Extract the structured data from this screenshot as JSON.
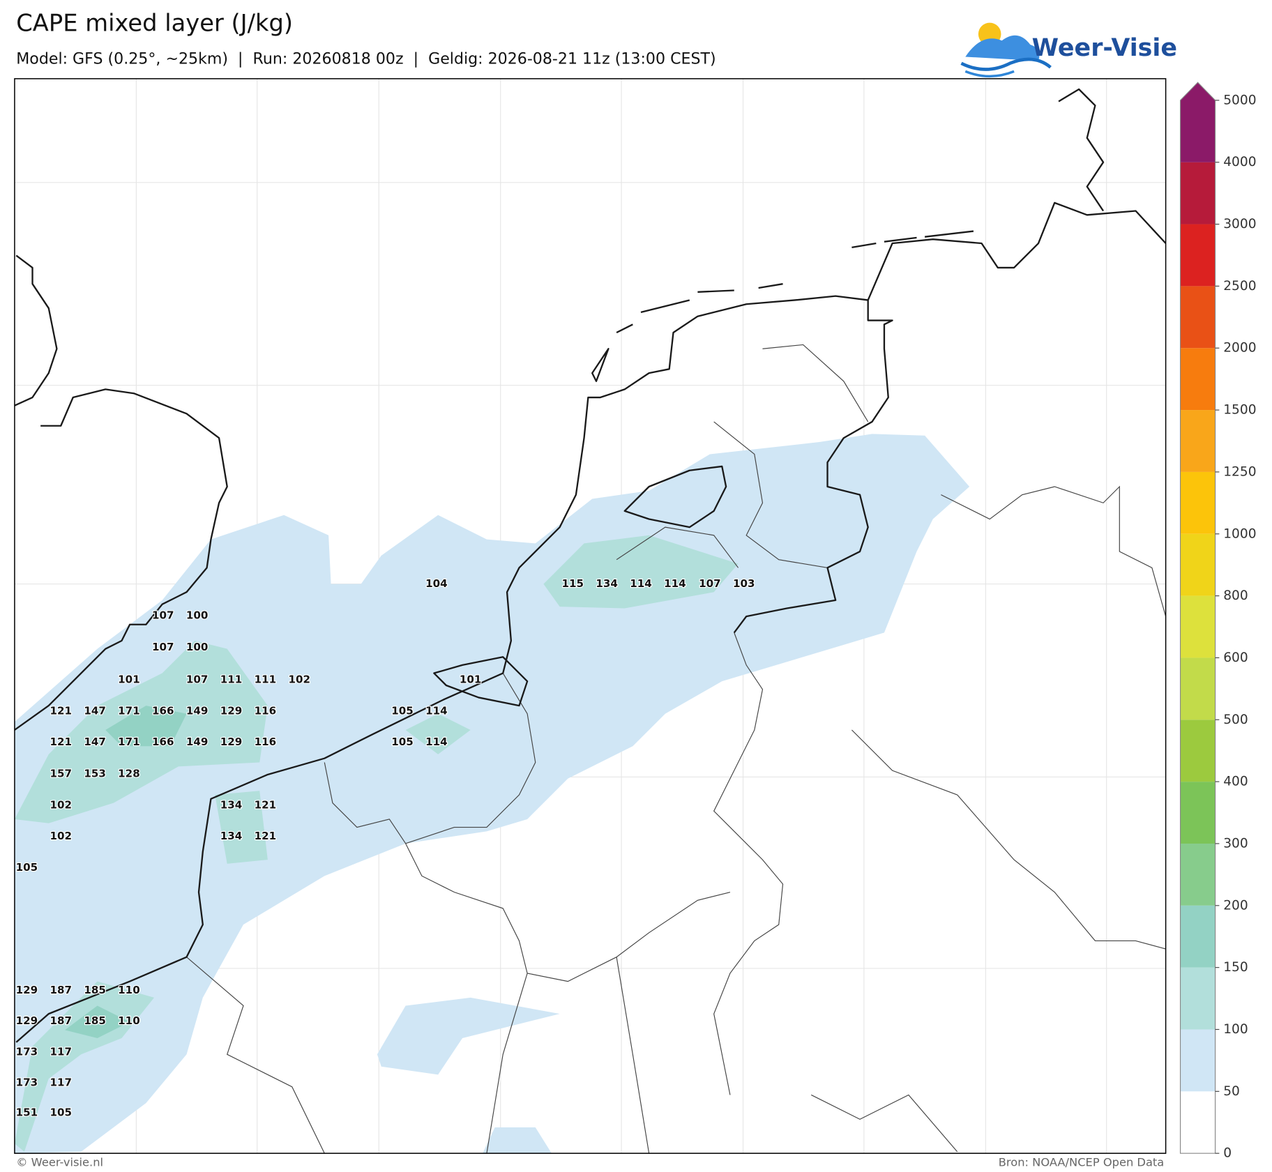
{
  "header": {
    "title": "CAPE mixed layer (J/kg)",
    "subtitle": "Model: GFS (0.25°, ~25km)  |  Run: 20260818 00z  |  Geldig: 2026-08-21 11z (13:00 CEST)",
    "logo": "Weer-Visie"
  },
  "map": {
    "labels": [
      104,
      115,
      134,
      114,
      114,
      107,
      103,
      107,
      100,
      107,
      100,
      101,
      107,
      111,
      111,
      102,
      101,
      121,
      147,
      171,
      166,
      149,
      129,
      116,
      105,
      114,
      121,
      147,
      171,
      166,
      149,
      129,
      116,
      105,
      114,
      157,
      153,
      128,
      102,
      134,
      121,
      102,
      134,
      121,
      105,
      129,
      187,
      185,
      110,
      129,
      187,
      185,
      110,
      173,
      117,
      173,
      117,
      151,
      105
    ]
  },
  "colorbar": {
    "ticks": [
      0,
      50,
      100,
      150,
      200,
      300,
      400,
      500,
      600,
      800,
      1000,
      1250,
      1500,
      2000,
      2500,
      3000,
      4000,
      5000
    ],
    "colors": [
      "#ffffff",
      "#d0e6f5",
      "#b2dfdb",
      "#93d2c4",
      "#87cc8c",
      "#7cc458",
      "#9cca3e",
      "#c2db4a",
      "#dde13c",
      "#f0d419",
      "#fcc40a",
      "#f9a61a",
      "#f77c0e",
      "#e95116",
      "#dc2220",
      "#b61b3a",
      "#8b1a68"
    ]
  },
  "footer": {
    "left": "© Weer-visie.nl",
    "right": "Bron: NOAA/NCEP Open Data"
  }
}
